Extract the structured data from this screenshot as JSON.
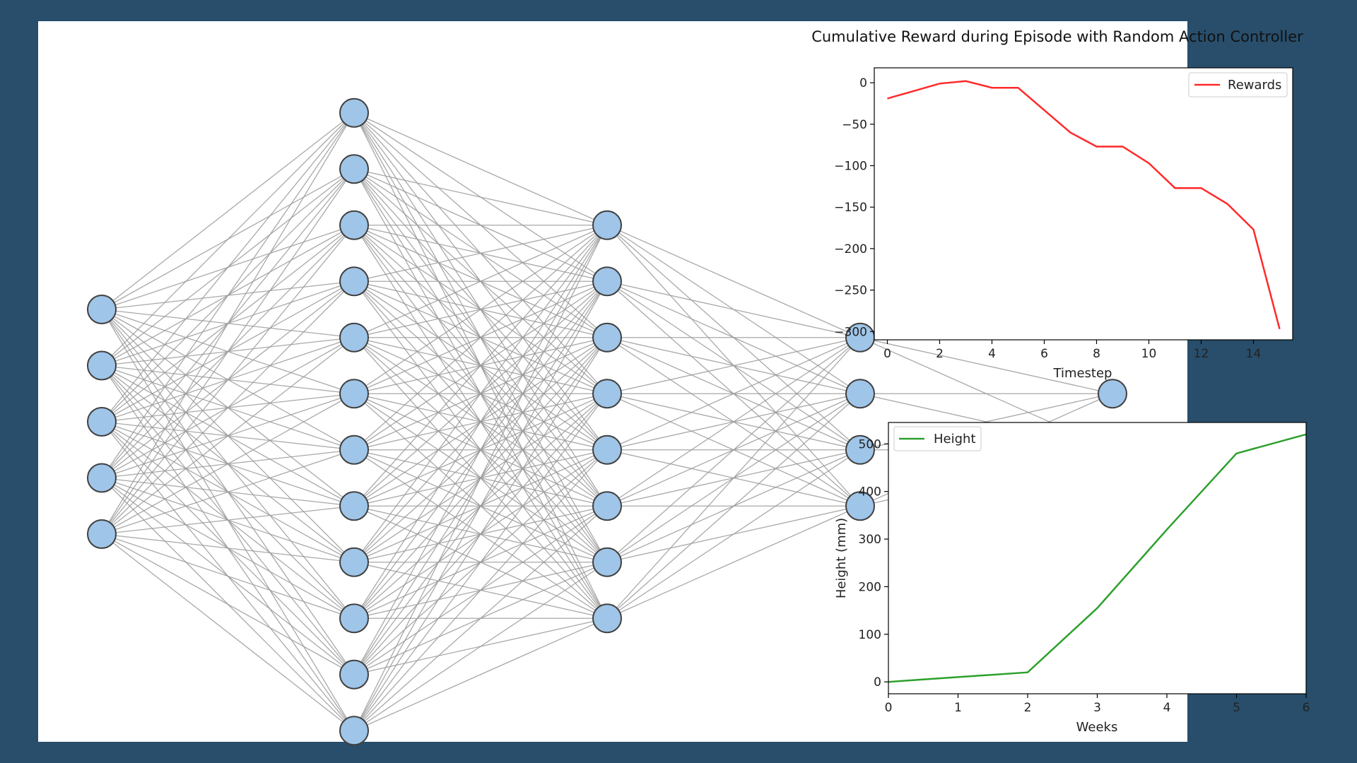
{
  "network": {
    "layers": [
      5,
      12,
      8,
      4,
      2
    ]
  },
  "chart_data": [
    {
      "type": "line",
      "title": "Cumulative Reward during Episode with Random Action Controller",
      "xlabel": "Timestep",
      "ylabel": "",
      "xlim": [
        -0.5,
        15.5
      ],
      "ylim": [
        -310,
        18
      ],
      "xticks": [
        0,
        2,
        4,
        6,
        8,
        10,
        12,
        14
      ],
      "yticks": [
        0,
        -50,
        -100,
        -150,
        -200,
        -250,
        -300
      ],
      "yticklabels": [
        "0",
        "−50",
        "−100",
        "−150",
        "−200",
        "−250",
        "−300"
      ],
      "legend_position": "upper-right",
      "grid": false,
      "series": [
        {
          "name": "Rewards",
          "color": "#ff2a2a",
          "x": [
            0,
            1,
            2,
            3,
            4,
            5,
            6,
            7,
            8,
            9,
            10,
            11,
            12,
            13,
            14,
            15
          ],
          "y": [
            -19,
            -10,
            -1,
            2,
            -6,
            -6,
            -33,
            -60,
            -77,
            -77,
            -97,
            -127,
            -127,
            -146,
            -177,
            -297
          ]
        }
      ]
    },
    {
      "type": "line",
      "title": "",
      "xlabel": "Weeks",
      "ylabel": "Height (mm)",
      "xlim": [
        0,
        6
      ],
      "ylim": [
        -25,
        545
      ],
      "xticks": [
        0,
        1,
        2,
        3,
        4,
        5,
        6
      ],
      "yticks": [
        0,
        100,
        200,
        300,
        400,
        500
      ],
      "yticklabels": [
        "0",
        "100",
        "200",
        "300",
        "400",
        "500"
      ],
      "legend_position": "upper-left",
      "grid": false,
      "series": [
        {
          "name": "Height",
          "color": "#2ca02c",
          "x": [
            0,
            1,
            2,
            3,
            4,
            5,
            6
          ],
          "y": [
            0,
            10,
            20,
            155,
            320,
            480,
            520
          ]
        }
      ]
    }
  ]
}
